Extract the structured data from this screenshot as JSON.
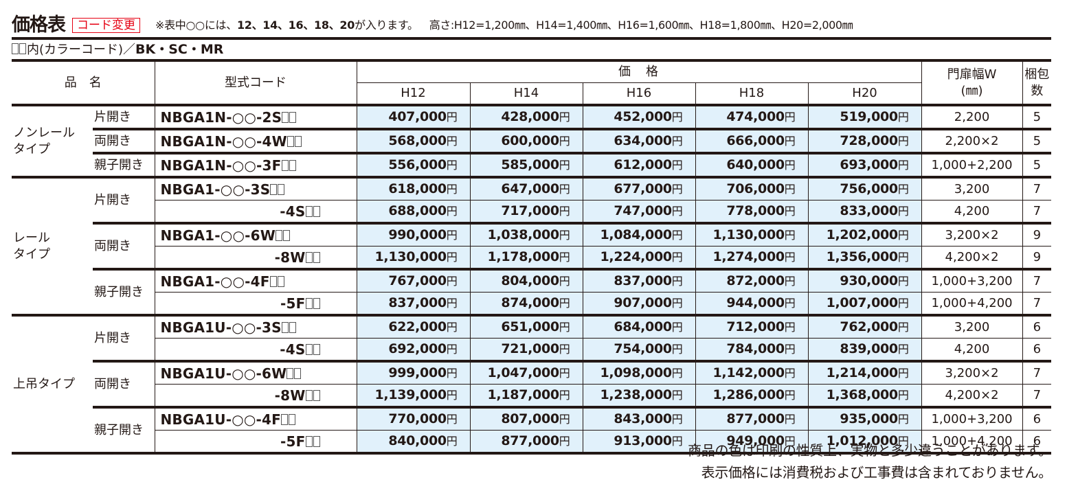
{
  "header": {
    "title": "価格表",
    "badge": "コード変更",
    "note_prefix": "※表中○○には、",
    "note_numbers": "12、14、16、18、20",
    "note_suffix": "が入ります。",
    "heights": "高さ:H12=1,200㎜、H14=1,400㎜、H16=1,600㎜、H18=1,800㎜、H20=2,000㎜",
    "color_label": "内(カラーコード)／",
    "color_codes": "BK・SC・MR"
  },
  "colors": {
    "badge_red": "#e60012",
    "price_bg": "#e1f1fb",
    "text": "#231815"
  },
  "table": {
    "columns": {
      "product_name": "品　名",
      "model_code": "型式コード",
      "price": "価　格",
      "heights": [
        "H12",
        "H14",
        "H16",
        "H18",
        "H20"
      ],
      "width_line1": "門扉幅W",
      "width_line2": "(㎜)",
      "packages_line1": "梱包",
      "packages_line2": "数"
    },
    "groups": [
      {
        "name": "ノンレール\nタイプ",
        "subgroups": [
          {
            "type": "片開き",
            "rows": [
              {
                "code": "NBGA1N-○○-2S",
                "prices": [
                  "407,000",
                  "428,000",
                  "452,000",
                  "474,000",
                  "519,000"
                ],
                "width": "2,200",
                "packages": "5"
              }
            ]
          },
          {
            "type": "両開き",
            "rows": [
              {
                "code": "NBGA1N-○○-4W",
                "prices": [
                  "568,000",
                  "600,000",
                  "634,000",
                  "666,000",
                  "728,000"
                ],
                "width": "2,200×2",
                "packages": "5"
              }
            ]
          },
          {
            "type": "親子開き",
            "rows": [
              {
                "code": "NBGA1N-○○-3F",
                "prices": [
                  "556,000",
                  "585,000",
                  "612,000",
                  "640,000",
                  "693,000"
                ],
                "width": "1,000+2,200",
                "packages": "5"
              }
            ]
          }
        ]
      },
      {
        "name": "レール\nタイプ",
        "subgroups": [
          {
            "type": "片開き",
            "rows": [
              {
                "code": "NBGA1-○○-3S",
                "prices": [
                  "618,000",
                  "647,000",
                  "677,000",
                  "706,000",
                  "756,000"
                ],
                "width": "3,200",
                "packages": "7"
              },
              {
                "code": "-4S",
                "prices": [
                  "688,000",
                  "717,000",
                  "747,000",
                  "778,000",
                  "833,000"
                ],
                "width": "4,200",
                "packages": "7"
              }
            ]
          },
          {
            "type": "両開き",
            "rows": [
              {
                "code": "NBGA1-○○-6W",
                "prices": [
                  "990,000",
                  "1,038,000",
                  "1,084,000",
                  "1,130,000",
                  "1,202,000"
                ],
                "width": "3,200×2",
                "packages": "9"
              },
              {
                "code": "-8W",
                "prices": [
                  "1,130,000",
                  "1,178,000",
                  "1,224,000",
                  "1,274,000",
                  "1,356,000"
                ],
                "width": "4,200×2",
                "packages": "9"
              }
            ]
          },
          {
            "type": "親子開き",
            "rows": [
              {
                "code": "NBGA1-○○-4F",
                "prices": [
                  "767,000",
                  "804,000",
                  "837,000",
                  "872,000",
                  "930,000"
                ],
                "width": "1,000+3,200",
                "packages": "7"
              },
              {
                "code": "-5F",
                "prices": [
                  "837,000",
                  "874,000",
                  "907,000",
                  "944,000",
                  "1,007,000"
                ],
                "width": "1,000+4,200",
                "packages": "7"
              }
            ]
          }
        ]
      },
      {
        "name": "上吊タイプ",
        "subgroups": [
          {
            "type": "片開き",
            "rows": [
              {
                "code": "NBGA1U-○○-3S",
                "prices": [
                  "622,000",
                  "651,000",
                  "684,000",
                  "712,000",
                  "762,000"
                ],
                "width": "3,200",
                "packages": "6"
              },
              {
                "code": "-4S",
                "prices": [
                  "692,000",
                  "721,000",
                  "754,000",
                  "784,000",
                  "839,000"
                ],
                "width": "4,200",
                "packages": "6"
              }
            ]
          },
          {
            "type": "両開き",
            "rows": [
              {
                "code": "NBGA1U-○○-6W",
                "prices": [
                  "999,000",
                  "1,047,000",
                  "1,098,000",
                  "1,142,000",
                  "1,214,000"
                ],
                "width": "3,200×2",
                "packages": "7"
              },
              {
                "code": "-8W",
                "prices": [
                  "1,139,000",
                  "1,187,000",
                  "1,238,000",
                  "1,286,000",
                  "1,368,000"
                ],
                "width": "4,200×2",
                "packages": "7"
              }
            ]
          },
          {
            "type": "親子開き",
            "rows": [
              {
                "code": "NBGA1U-○○-4F",
                "prices": [
                  "770,000",
                  "807,000",
                  "843,000",
                  "877,000",
                  "935,000"
                ],
                "width": "1,000+3,200",
                "packages": "6"
              },
              {
                "code": "-5F",
                "prices": [
                  "840,000",
                  "877,000",
                  "913,000",
                  "949,000",
                  "1,012,000"
                ],
                "width": "1,000+4,200",
                "packages": "6"
              }
            ]
          }
        ]
      }
    ],
    "currency_suffix": "円"
  },
  "footer": {
    "line1": "商品の色は印刷の性質上、実物と多少違うことがあります。",
    "line2": "表示価格には消費税および工事費は含まれておりません。"
  }
}
